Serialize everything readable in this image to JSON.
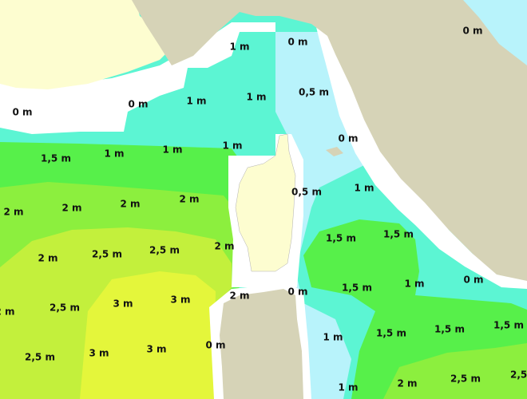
{
  "labels": [
    "0 m",
    "0 m",
    "1 m",
    "0,5 m",
    "1 m",
    "1 m",
    "0 m",
    "0 m",
    "0 m",
    "1,5 m",
    "1 m",
    "1 m",
    "1 m",
    "0,5 m",
    "1 m",
    "2 m",
    "2 m",
    "2 m",
    "2 m",
    "1,5 m",
    "1,5 m",
    "2,5 m",
    "2 m",
    "2,5 m",
    "2 m",
    "0 m",
    "1 m",
    "1,5 m",
    "0 m",
    "2 m",
    "3 m",
    "3 m",
    "2,5 m",
    "2 m",
    "1,5 m",
    "1,5 m",
    "1,5 m",
    "1 m",
    "0 m",
    "3 m",
    "3 m",
    "2,5 m",
    "2,5 m",
    "2,5 m",
    "2 m",
    "1 m"
  ]
}
